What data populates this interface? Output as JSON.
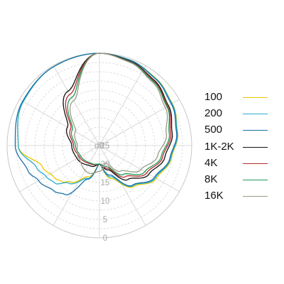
{
  "chart_data": {
    "type": "polar-line",
    "title": "",
    "unit_label": "dB",
    "radial_ticks": [
      "25",
      "20",
      "15",
      "10",
      "5",
      "0"
    ],
    "radial_range": [
      -25,
      0
    ],
    "angle_zero": "top",
    "direction": "clockwise",
    "grid": true,
    "legend_placement": "right",
    "series": [
      {
        "name": "100",
        "color": "#e8c800",
        "points": [
          [
            0,
            0
          ],
          [
            20,
            -0.4
          ],
          [
            40,
            -1.2
          ],
          [
            60,
            -2.2
          ],
          [
            80,
            -3.5
          ],
          [
            100,
            -5.2
          ],
          [
            120,
            -7.2
          ],
          [
            140,
            -10.5
          ],
          [
            160,
            -15.5
          ],
          [
            180,
            -20
          ],
          [
            200,
            -16
          ],
          [
            220,
            -12.3
          ],
          [
            225,
            -11
          ],
          [
            235,
            -10
          ],
          [
            250,
            -8.5
          ],
          [
            270,
            -3
          ],
          [
            300,
            -1.2
          ],
          [
            330,
            -0.3
          ],
          [
            360,
            0
          ]
        ]
      },
      {
        "name": "200",
        "color": "#2aaccf",
        "points": [
          [
            0,
            0
          ],
          [
            20,
            -0.4
          ],
          [
            40,
            -1.3
          ],
          [
            60,
            -2.3
          ],
          [
            80,
            -3.6
          ],
          [
            100,
            -5.4
          ],
          [
            120,
            -7.5
          ],
          [
            140,
            -10.8
          ],
          [
            160,
            -16
          ],
          [
            180,
            -20
          ],
          [
            200,
            -15.5
          ],
          [
            220,
            -11.8
          ],
          [
            230,
            -9.2
          ],
          [
            240,
            -8.3
          ],
          [
            250,
            -7
          ],
          [
            270,
            -3
          ],
          [
            300,
            -1.2
          ],
          [
            330,
            -0.3
          ],
          [
            360,
            0
          ]
        ]
      },
      {
        "name": "500",
        "color": "#1a72a8",
        "points": [
          [
            0,
            0
          ],
          [
            20,
            -0.5
          ],
          [
            40,
            -1.4
          ],
          [
            60,
            -2.5
          ],
          [
            80,
            -3.8
          ],
          [
            100,
            -5.6
          ],
          [
            120,
            -7.8
          ],
          [
            140,
            -11
          ],
          [
            160,
            -16.5
          ],
          [
            180,
            -20
          ],
          [
            200,
            -15.3
          ],
          [
            215,
            -8.8
          ],
          [
            225,
            -7.6
          ],
          [
            240,
            -6
          ],
          [
            250,
            -4.5
          ],
          [
            270,
            -2.2
          ],
          [
            300,
            -1
          ],
          [
            330,
            -0.3
          ],
          [
            360,
            0
          ]
        ]
      },
      {
        "name": "1K-2K",
        "color": "#111111",
        "points": [
          [
            0,
            0
          ],
          [
            20,
            -0.7
          ],
          [
            40,
            -1.9
          ],
          [
            60,
            -3.4
          ],
          [
            80,
            -5
          ],
          [
            100,
            -7
          ],
          [
            120,
            -9.5
          ],
          [
            140,
            -13
          ],
          [
            160,
            -18
          ],
          [
            180,
            -20
          ],
          [
            200,
            -19
          ],
          [
            240,
            -18
          ],
          [
            270,
            -17.5
          ],
          [
            300,
            -15
          ],
          [
            330,
            -8
          ],
          [
            360,
            0
          ]
        ]
      },
      {
        "name": "4K",
        "color": "#b52a2a",
        "points": [
          [
            0,
            0
          ],
          [
            20,
            -0.8
          ],
          [
            40,
            -2.1
          ],
          [
            60,
            -3.7
          ],
          [
            80,
            -5.4
          ],
          [
            100,
            -7.6
          ],
          [
            120,
            -10.2
          ],
          [
            140,
            -14
          ],
          [
            160,
            -18.5
          ],
          [
            180,
            -20
          ],
          [
            200,
            -19.5
          ],
          [
            240,
            -18.8
          ],
          [
            270,
            -18
          ],
          [
            300,
            -16
          ],
          [
            330,
            -9
          ],
          [
            360,
            0
          ]
        ]
      },
      {
        "name": "8K",
        "color": "#1f9a5a",
        "points": [
          [
            0,
            0
          ],
          [
            20,
            -0.9
          ],
          [
            40,
            -2.3
          ],
          [
            60,
            -3.9
          ],
          [
            80,
            -5.8
          ],
          [
            100,
            -8
          ],
          [
            120,
            -10.8
          ],
          [
            140,
            -14.8
          ],
          [
            160,
            -19
          ],
          [
            180,
            -20
          ],
          [
            200,
            -19.7
          ],
          [
            240,
            -19.2
          ],
          [
            270,
            -18.5
          ],
          [
            300,
            -16.5
          ],
          [
            330,
            -10
          ],
          [
            360,
            0
          ]
        ]
      },
      {
        "name": "16K",
        "color": "#9a9a86",
        "points": [
          [
            0,
            0
          ],
          [
            20,
            -1
          ],
          [
            40,
            -2.6
          ],
          [
            60,
            -4.4
          ],
          [
            80,
            -6.6
          ],
          [
            100,
            -9
          ],
          [
            120,
            -12
          ],
          [
            140,
            -16
          ],
          [
            160,
            -20
          ],
          [
            180,
            -18
          ],
          [
            200,
            -17
          ],
          [
            240,
            -18.5
          ],
          [
            270,
            -19
          ],
          [
            300,
            -17.5
          ],
          [
            330,
            -11
          ],
          [
            360,
            0
          ]
        ]
      }
    ]
  }
}
